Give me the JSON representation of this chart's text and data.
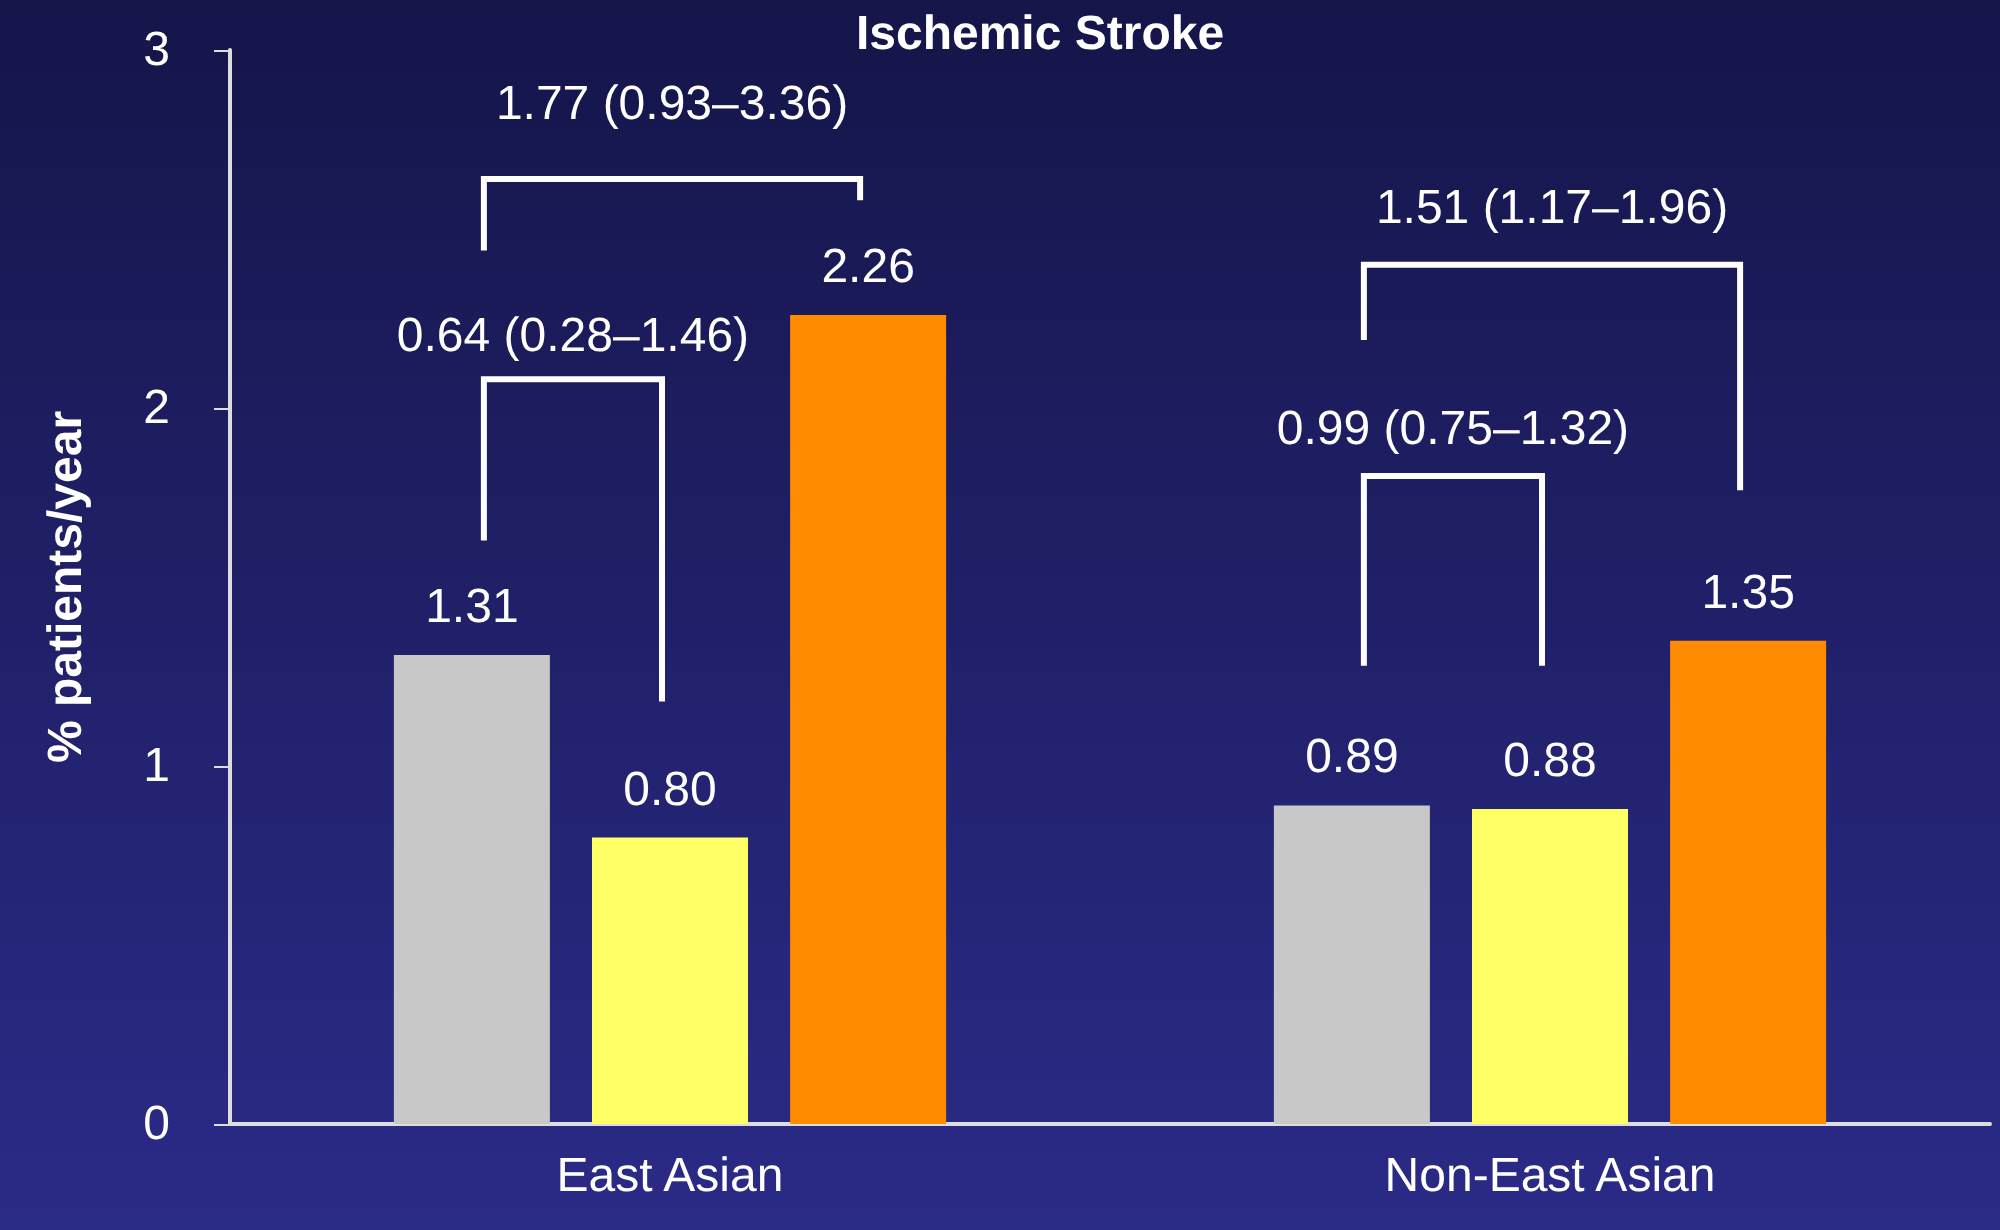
{
  "chart_data": {
    "type": "bar",
    "title": "Ischemic Stroke",
    "ylabel": "% patients/year",
    "categories": [
      "East Asian",
      "Non-East Asian"
    ],
    "series": [
      {
        "color": "#c8c8c8",
        "values": [
          1.31,
          0.89
        ],
        "value_labels": [
          "1.31",
          "0.89"
        ]
      },
      {
        "color": "#ffff66",
        "values": [
          0.8,
          0.88
        ],
        "value_labels": [
          "0.80",
          "0.88"
        ]
      },
      {
        "color": "#ff8c00",
        "values": [
          2.26,
          1.35
        ],
        "value_labels": [
          "2.26",
          "1.35"
        ]
      }
    ],
    "ylim": [
      0,
      3
    ],
    "yticks": [
      0,
      1,
      2,
      3
    ],
    "grid": false,
    "annotations": [
      "1.77 (0.93–3.36)",
      "0.64 (0.28–1.46)",
      "1.51 (1.17–1.96)",
      "0.99 (0.75–1.32)"
    ]
  }
}
